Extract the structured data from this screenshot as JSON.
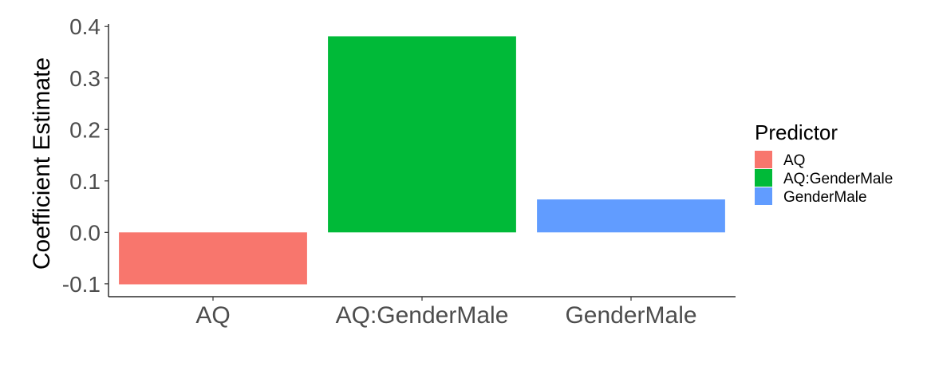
{
  "chart_data": {
    "type": "bar",
    "title": "",
    "xlabel": "",
    "ylabel": "Coefficient Estimate",
    "categories": [
      "AQ",
      "AQ:GenderMale",
      "GenderMale"
    ],
    "values": [
      -0.101,
      0.381,
      0.064
    ],
    "ylim": [
      -0.125,
      0.405
    ],
    "yticks": [
      -0.1,
      0.0,
      0.1,
      0.2,
      0.3,
      0.4
    ],
    "ytick_labels": [
      "-0.1",
      "0.0",
      "0.1",
      "0.2",
      "0.3",
      "0.4"
    ],
    "grid": false,
    "legend": {
      "title": "Predictor",
      "placement": "right",
      "entries": [
        "AQ",
        "AQ:GenderMale",
        "GenderMale"
      ]
    },
    "colors": [
      "#F8766D",
      "#00BA38",
      "#619CFF"
    ]
  }
}
